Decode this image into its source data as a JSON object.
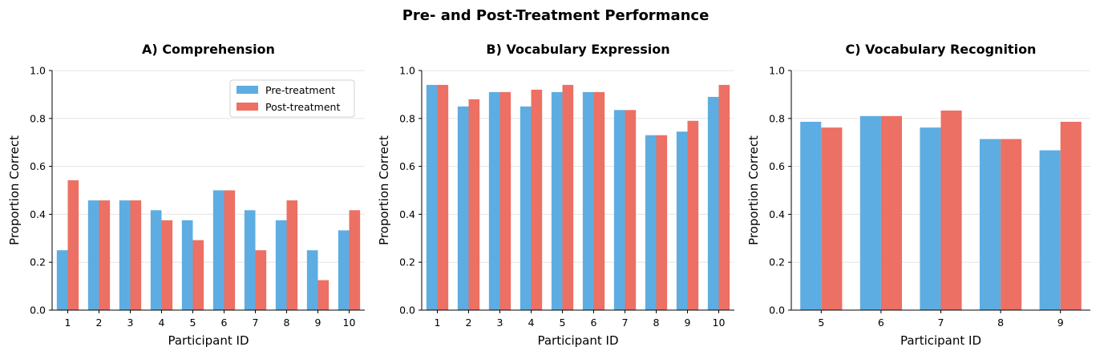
{
  "figure": {
    "title": "Pre- and Post-Treatment Performance"
  },
  "colors": {
    "pre": "#5DADE2",
    "post": "#EC7063",
    "grid": "#e5e5e5"
  },
  "chart_data": [
    {
      "type": "bar",
      "title": "A) Comprehension",
      "xlabel": "Participant ID",
      "ylabel": "Proportion Correct",
      "ylim": [
        0,
        1.0
      ],
      "yticks": [
        "0.0",
        "0.2",
        "0.4",
        "0.6",
        "0.8",
        "1.0"
      ],
      "grid": "y-axis, faint",
      "legend": "upper-right",
      "categories": [
        "1",
        "2",
        "3",
        "4",
        "5",
        "6",
        "7",
        "8",
        "9",
        "10"
      ],
      "series": [
        {
          "name": "Pre-treatment",
          "values": [
            0.25,
            0.458,
            0.458,
            0.417,
            0.375,
            0.5,
            0.417,
            0.375,
            0.25,
            0.333
          ]
        },
        {
          "name": "Post-treatment",
          "values": [
            0.542,
            0.458,
            0.458,
            0.375,
            0.292,
            0.5,
            0.25,
            0.458,
            0.125,
            0.417
          ]
        }
      ]
    },
    {
      "type": "bar",
      "title": "B) Vocabulary Expression",
      "xlabel": "Participant ID",
      "ylabel": "Proportion Correct",
      "ylim": [
        0,
        1.0
      ],
      "yticks": [
        "0.0",
        "0.2",
        "0.4",
        "0.6",
        "0.8",
        "1.0"
      ],
      "grid": "y-axis, faint",
      "categories": [
        "1",
        "2",
        "3",
        "4",
        "5",
        "6",
        "7",
        "8",
        "9",
        "10"
      ],
      "series": [
        {
          "name": "Pre-treatment",
          "values": [
            0.94,
            0.85,
            0.91,
            0.85,
            0.91,
            0.91,
            0.835,
            0.73,
            0.745,
            0.89
          ]
        },
        {
          "name": "Post-treatment",
          "values": [
            0.94,
            0.88,
            0.91,
            0.92,
            0.94,
            0.91,
            0.835,
            0.73,
            0.79,
            0.94
          ]
        }
      ]
    },
    {
      "type": "bar",
      "title": "C) Vocabulary Recognition",
      "xlabel": "Participant ID",
      "ylabel": "Proportion Correct",
      "ylim": [
        0,
        1.0
      ],
      "yticks": [
        "0.0",
        "0.2",
        "0.4",
        "0.6",
        "0.8",
        "1.0"
      ],
      "grid": "y-axis, faint",
      "categories": [
        "5",
        "6",
        "7",
        "8",
        "9"
      ],
      "series": [
        {
          "name": "Pre-treatment",
          "values": [
            0.786,
            0.81,
            0.762,
            0.714,
            0.667
          ]
        },
        {
          "name": "Post-treatment",
          "values": [
            0.762,
            0.81,
            0.833,
            0.714,
            0.786
          ]
        }
      ]
    }
  ]
}
